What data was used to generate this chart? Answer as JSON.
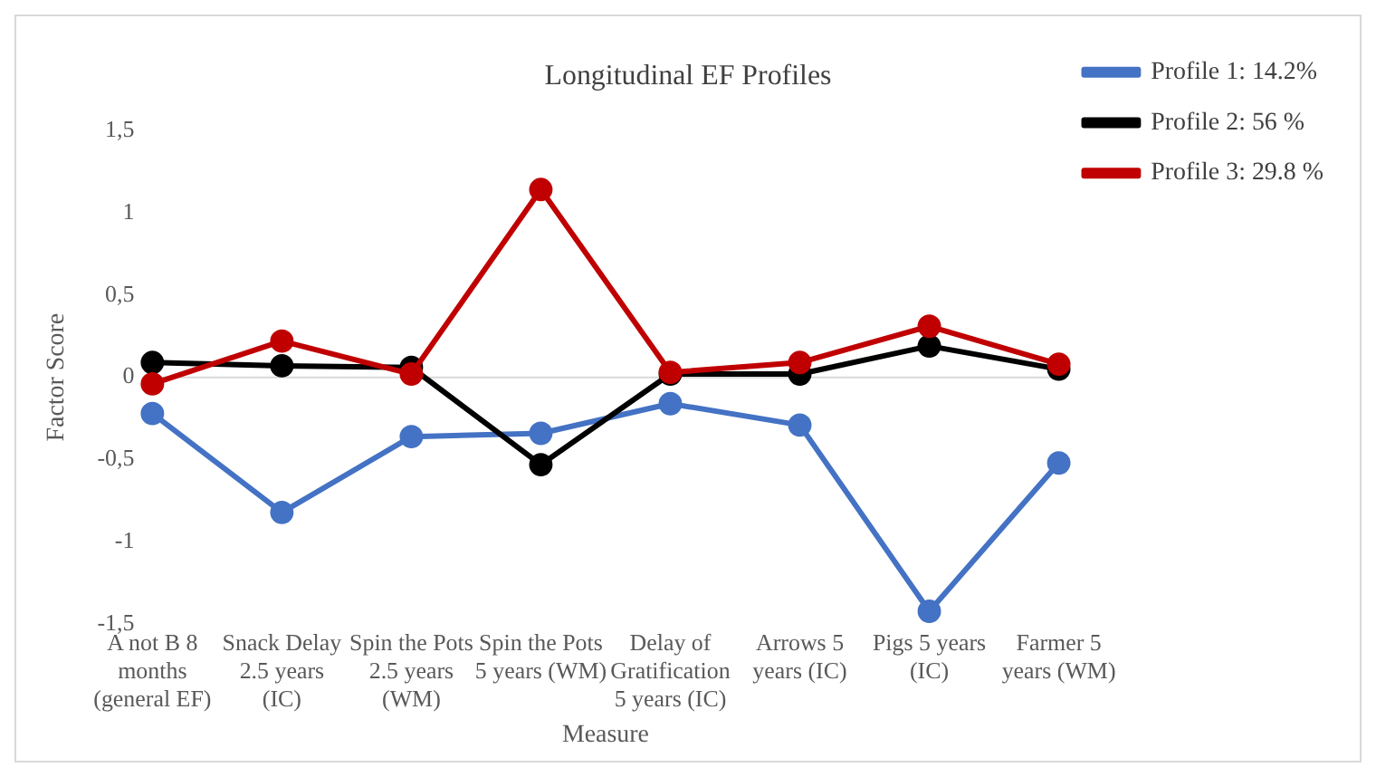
{
  "chart_data": {
    "type": "line",
    "title": "Longitudinal EF Profiles",
    "xlabel": "Measure",
    "ylabel": "Factor Score",
    "categories": [
      "A not B 8 months (general EF)",
      "Snack Delay 2.5 years (IC)",
      "Spin the Pots 2.5 years (WM)",
      "Spin the Pots 5 years (WM)",
      "Delay of Gratification 5 years (IC)",
      "Arrows 5 years (IC)",
      "Pigs 5 years (IC)",
      "Farmer 5 years (WM)"
    ],
    "series": [
      {
        "name": "Profile 1: 14.2%",
        "color": "#4472c4",
        "values": [
          -0.22,
          -0.82,
          -0.36,
          -0.34,
          -0.16,
          -0.29,
          -1.42,
          -0.52
        ]
      },
      {
        "name": "Profile 2: 56 %",
        "color": "#000000",
        "values": [
          0.09,
          0.07,
          0.06,
          -0.53,
          0.02,
          0.02,
          0.19,
          0.05
        ]
      },
      {
        "name": "Profile 3: 29.8 %",
        "color": "#c00000",
        "values": [
          -0.04,
          0.22,
          0.02,
          1.14,
          0.03,
          0.09,
          0.31,
          0.08
        ]
      }
    ],
    "ylim": [
      -1.5,
      1.5
    ],
    "yticks": [
      {
        "value": -1.5,
        "label": "-1,5"
      },
      -1,
      {
        "value": -0.5,
        "label": "-0,5"
      },
      0,
      {
        "value": 0.5,
        "label": "0,5"
      },
      1,
      {
        "value": 1.5,
        "label": "1,5"
      }
    ],
    "ref_lines": [
      {
        "axis": "y",
        "value": 0,
        "color": "#d9d9d9"
      }
    ],
    "grid": false,
    "legend": "top right",
    "marker": "circle",
    "line_style": "solid"
  }
}
